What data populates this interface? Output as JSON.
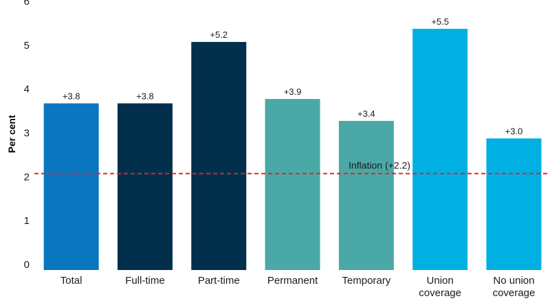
{
  "chart_data": {
    "type": "bar",
    "title": "",
    "xlabel": "",
    "ylabel": "Per cent",
    "ylim": [
      0,
      6
    ],
    "yticks": [
      0,
      1,
      2,
      3,
      4,
      5,
      6
    ],
    "grid": false,
    "categories": [
      [
        "Total"
      ],
      [
        "Full-time"
      ],
      [
        "Part-time"
      ],
      [
        "Permanent"
      ],
      [
        "Temporary"
      ],
      [
        "Union",
        "coverage"
      ],
      [
        "No union",
        "coverage"
      ]
    ],
    "values": [
      3.8,
      3.8,
      5.2,
      3.9,
      3.4,
      5.5,
      3.0
    ],
    "value_labels": [
      "+3.8",
      "+3.8",
      "+5.2",
      "+3.9",
      "+3.4",
      "+5.5",
      "+3.0"
    ],
    "colors": [
      "#0A77C0",
      "#02304C",
      "#02304C",
      "#4AA9A6",
      "#4AA9A6",
      "#00B0E2",
      "#00B0E2"
    ],
    "reference_line": {
      "value": 2.2,
      "label": "Inflation (+2.2)",
      "color": "#D9262B",
      "style": "dashed"
    }
  }
}
